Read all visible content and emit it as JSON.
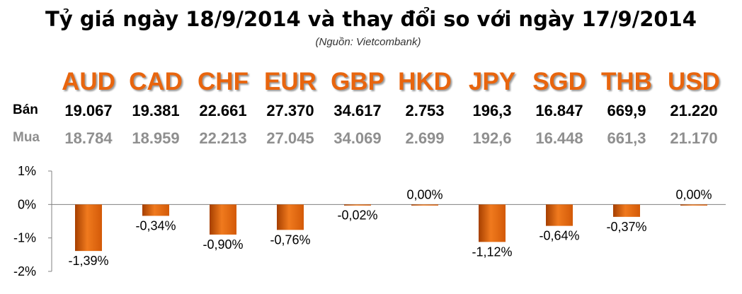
{
  "header": {
    "title": "Tỷ giá ngày 18/9/2014 và thay đổi so với ngày 17/9/2014",
    "source": "(Nguồn: Vietcombank)"
  },
  "rates": {
    "sell_label": "Bán",
    "buy_label": "Mua",
    "currencies": [
      "AUD",
      "CAD",
      "CHF",
      "EUR",
      "GBP",
      "HKD",
      "JPY",
      "SGD",
      "THB",
      "USD"
    ],
    "sell": [
      "19.067",
      "19.381",
      "22.661",
      "27.370",
      "34.617",
      "2.753",
      "196,3",
      "16.847",
      "669,9",
      "21.220"
    ],
    "buy": [
      "18.784",
      "18.959",
      "22.213",
      "27.045",
      "34.069",
      "2.699",
      "192,6",
      "16.448",
      "661,3",
      "21.170"
    ]
  },
  "colors": {
    "accent": "#e8650e",
    "bar_dark": "#a63f00",
    "bar_light": "#f07a1e",
    "buy_text": "#8f8f8f"
  },
  "chart_data": {
    "type": "bar",
    "categories": [
      "AUD",
      "CAD",
      "CHF",
      "EUR",
      "GBP",
      "HKD",
      "JPY",
      "SGD",
      "THB",
      "USD"
    ],
    "values": [
      -1.39,
      -0.34,
      -0.9,
      -0.76,
      -0.02,
      0.0,
      -1.12,
      -0.64,
      -0.37,
      0.0
    ],
    "data_labels": [
      "-1,39%",
      "-0,34%",
      "-0,90%",
      "-0,76%",
      "-0,02%",
      "0,00%",
      "-1,12%",
      "-0,64%",
      "-0,37%",
      "0,00%"
    ],
    "ytick_labels": [
      "1%",
      "0%",
      "-1%",
      "-2%"
    ],
    "yticks": [
      1,
      0,
      -1,
      -2
    ],
    "ylim": [
      -2,
      1
    ],
    "grid": false,
    "legend": "none"
  }
}
